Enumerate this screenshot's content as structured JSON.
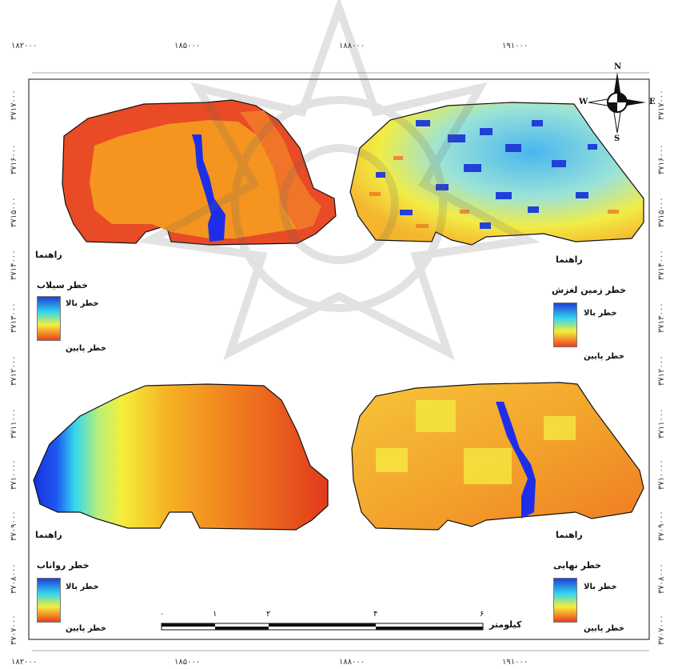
{
  "ticks": {
    "top": [
      "۱۸۲۰۰۰",
      "۱۸۵۰۰۰",
      "۱۸۸۰۰۰",
      "۱۹۱۰۰۰"
    ],
    "bottom": [
      "۱۸۲۰۰۰",
      "۱۸۵۰۰۰",
      "۱۸۸۰۰۰",
      "۱۹۱۰۰۰"
    ],
    "left": [
      "۳۷۱۷۰۰۰",
      "۳۷۱۶۰۰۰",
      "۳۷۱۵۰۰۰",
      "۳۷۱۴۰۰۰",
      "۳۷۱۳۰۰۰",
      "۳۷۱۲۰۰۰",
      "۳۷۱۱۰۰۰",
      "۳۷۱۰۰۰۰",
      "۳۷۰۹۰۰۰",
      "۳۷۰۸۰۰۰",
      "۳۷۰۷۰۰۰"
    ],
    "right": [
      "۳۷۱۷۰۰۰",
      "۳۷۱۶۰۰۰",
      "۳۷۱۵۰۰۰",
      "۳۷۱۴۰۰۰",
      "۳۷۱۳۰۰۰",
      "۳۷۱۲۰۰۰",
      "۳۷۱۱۰۰۰",
      "۳۷۱۰۰۰۰",
      "۳۷۰۹۰۰۰",
      "۳۷۰۸۰۰۰",
      "۳۷۰۷۰۰۰"
    ]
  },
  "north_arrow": {
    "n": "N",
    "s": "S",
    "e": "E",
    "w": "W"
  },
  "panels": [
    {
      "id": "flood",
      "legend_heading": "راهنما",
      "legend_title": "خطر سیلاب",
      "high_label": "خطر بالا",
      "low_label": "خطر پایین"
    },
    {
      "id": "landslide",
      "legend_heading": "راهنما",
      "legend_title": "خطر زمین لغزش",
      "high_label": "خطر بالا",
      "low_label": "خطر پایین"
    },
    {
      "id": "runoff",
      "legend_heading": "راهنما",
      "legend_title": "خطر رواناب",
      "high_label": "خطر بالا",
      "low_label": "خطر پایین"
    },
    {
      "id": "final",
      "legend_heading": "راهنما",
      "legend_title": "خطر نهایی",
      "high_label": "خطر بالا",
      "low_label": "خطر پایین"
    }
  ],
  "scale_bar": {
    "ticks": [
      "۰",
      "۱",
      "۲",
      "۴",
      "۶"
    ],
    "unit": "کیلومتر"
  },
  "colors": {
    "ramp_high": "#1f3fd6",
    "ramp_mid_cyan": "#33d6f0",
    "ramp_mid_yellow": "#f5ee3a",
    "ramp_low": "#ee3e1c",
    "stream": "#1e2ee8"
  }
}
